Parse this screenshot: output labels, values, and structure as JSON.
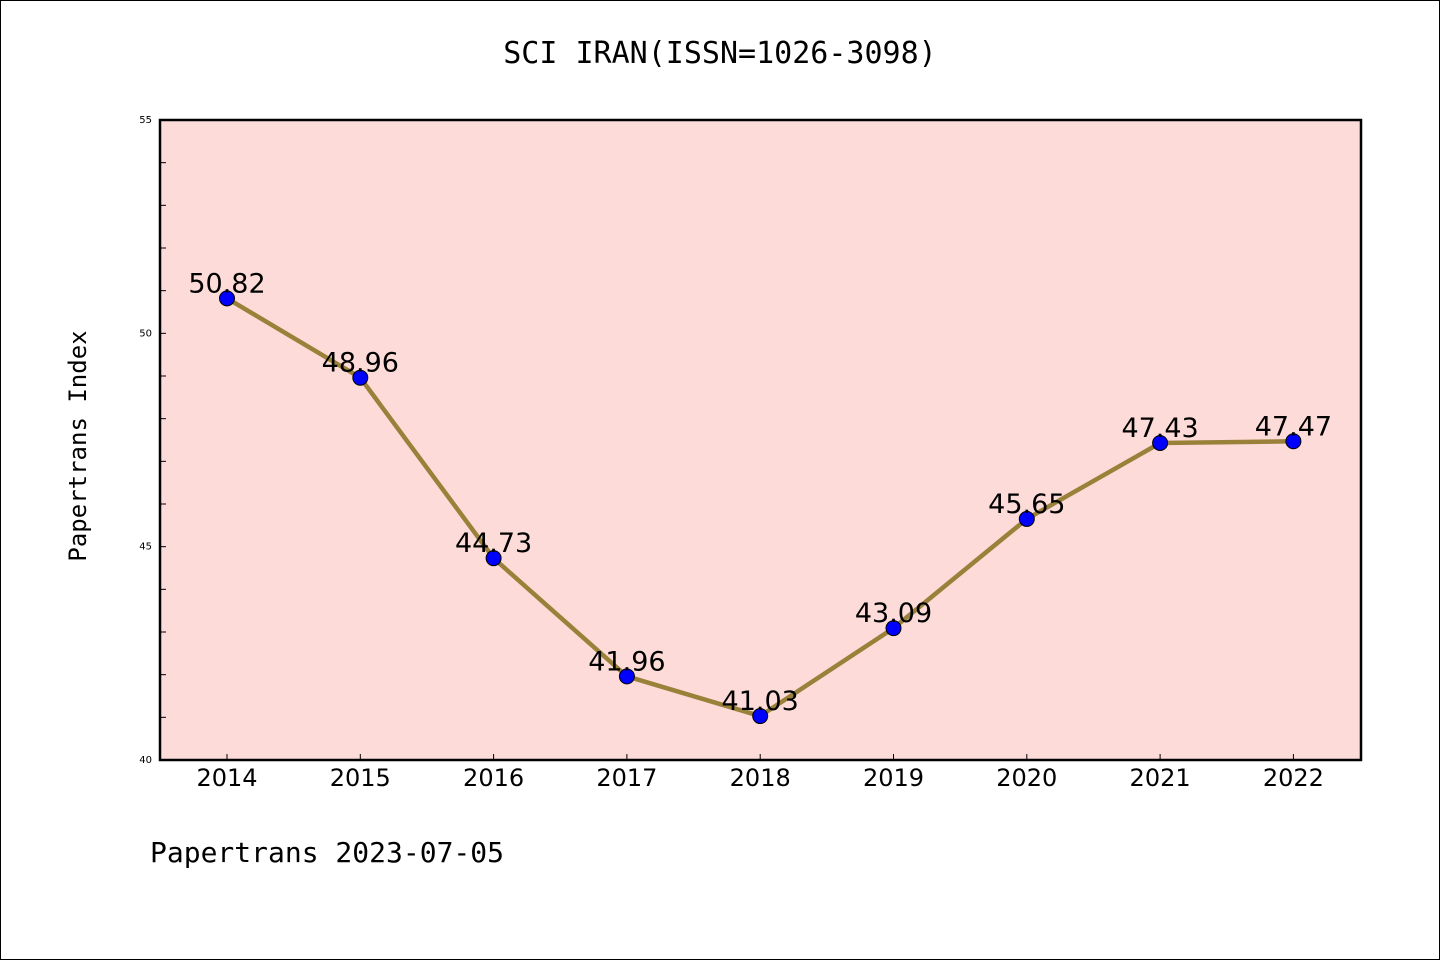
{
  "chart_data": {
    "type": "line",
    "title": "SCI IRAN(ISSN=1026-3098)",
    "ylabel": "Papertrans Index",
    "xlabel": "",
    "categories": [
      "2014",
      "2015",
      "2016",
      "2017",
      "2018",
      "2019",
      "2020",
      "2021",
      "2022"
    ],
    "series": [
      {
        "values": [
          50.82,
          48.96,
          44.73,
          41.96,
          41.03,
          43.09,
          45.65,
          47.43,
          47.47
        ],
        "labels": [
          "50.82",
          "48.96",
          "44.73",
          "41.96",
          "41.03",
          "43.09",
          "45.65",
          "47.43",
          "47.47"
        ]
      }
    ],
    "ylim": [
      40,
      55
    ],
    "yticks": [
      "40",
      "45",
      "50",
      "55"
    ],
    "grid": false,
    "legend": "none",
    "colors": {
      "plot_background": "#fddbd8",
      "line": "#9a813a",
      "marker": "#0000ff"
    }
  },
  "footer": "Papertrans 2023-07-05"
}
